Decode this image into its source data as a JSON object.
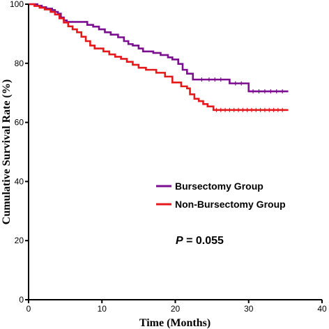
{
  "chart_data": {
    "type": "line",
    "xlabel": "Time (Months)",
    "ylabel": "Cumulative Survival Rate (%)",
    "xlim": [
      0,
      40
    ],
    "ylim": [
      0,
      100
    ],
    "xticks": [
      0,
      10,
      20,
      30,
      40
    ],
    "yticks": [
      0,
      20,
      40,
      60,
      80,
      100
    ],
    "grid": false,
    "legend_position": "center-right",
    "annotation": {
      "italic": "P",
      "rest": " = 0.055"
    },
    "series": [
      {
        "name": "Bursectomy Group",
        "color": "#7B0F8F",
        "x": [
          0,
          1.2,
          1.8,
          2.4,
          3.2,
          3.6,
          4.0,
          4.4,
          4.8,
          5.2,
          5.8,
          8.0,
          8.8,
          9.6,
          10.4,
          11.2,
          12.2,
          13.0,
          13.6,
          14.2,
          15.0,
          15.6,
          17.0,
          18.0,
          19.0,
          19.6,
          20.4,
          21.0,
          21.6,
          22.4,
          27.4,
          30.0,
          35.4
        ],
        "y": [
          100,
          99.5,
          99,
          98.5,
          98,
          97.4,
          96.8,
          95.5,
          94.5,
          94,
          94,
          93,
          92.4,
          91.5,
          90.5,
          89.7,
          88.8,
          87.5,
          86.5,
          86,
          85,
          84,
          83.5,
          82.8,
          82,
          81.3,
          79.8,
          77.8,
          76.5,
          74.5,
          73.2,
          70.5,
          70.5
        ]
      },
      {
        "name": "Non-Bursectomy Group",
        "color": "#E5191C",
        "x": [
          0,
          0.8,
          1.5,
          2.2,
          3.0,
          3.6,
          4.2,
          4.8,
          5.4,
          6.0,
          6.6,
          7.2,
          7.8,
          8.4,
          9.0,
          10.2,
          11.0,
          11.8,
          12.6,
          13.4,
          14.2,
          15.0,
          16.0,
          17.4,
          18.6,
          19.6,
          20.8,
          21.6,
          22.0,
          22.6,
          23.2,
          23.8,
          24.4,
          25.2,
          35.4
        ],
        "y": [
          100,
          99.4,
          98.8,
          98.2,
          97.4,
          96.5,
          95.2,
          93.8,
          92.5,
          91.5,
          90.5,
          89,
          87.5,
          86,
          85,
          84,
          83,
          82.2,
          81.5,
          80.5,
          79.5,
          78.5,
          77.8,
          76.8,
          75.5,
          73.5,
          72.2,
          71.5,
          69.5,
          68,
          67.2,
          66.2,
          65.4,
          64.2,
          64.2
        ]
      }
    ],
    "censor_ticks": [
      {
        "series": 0,
        "x": [
          23.6,
          24.6,
          25.4,
          26.2,
          28.2,
          29.0,
          30.6,
          31.4,
          32.2,
          33.0,
          33.8,
          34.6
        ]
      },
      {
        "series": 1,
        "x": [
          25.6,
          26.2,
          26.8,
          27.4,
          28.0,
          28.6,
          29.2,
          29.8,
          30.4,
          31.0,
          31.6,
          32.2,
          32.8,
          33.4,
          34.0,
          34.6
        ]
      }
    ]
  }
}
